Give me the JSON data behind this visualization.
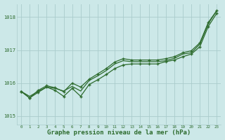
{
  "xlabel": "Graphe pression niveau de la mer (hPa)",
  "background_color": "#cce8e8",
  "grid_color": "#aacccc",
  "line_color": "#2d6b2d",
  "xlim": [
    -0.5,
    23.5
  ],
  "ylim": [
    1014.75,
    1018.4
  ],
  "yticks": [
    1015,
    1016,
    1017,
    1018
  ],
  "xticks": [
    0,
    1,
    2,
    3,
    4,
    5,
    6,
    7,
    8,
    9,
    10,
    11,
    12,
    13,
    14,
    15,
    16,
    17,
    18,
    19,
    20,
    21,
    22,
    23
  ],
  "series_smooth": [
    1015.75,
    1015.6,
    1015.75,
    1015.88,
    1015.84,
    1015.76,
    1015.9,
    1015.76,
    1016.08,
    1016.22,
    1016.38,
    1016.58,
    1016.68,
    1016.65,
    1016.65,
    1016.65,
    1016.65,
    1016.68,
    1016.75,
    1016.88,
    1016.92,
    1017.18,
    1017.8,
    1018.2
  ],
  "series_marker1": [
    1015.75,
    1015.55,
    1015.72,
    1015.88,
    1015.78,
    1015.6,
    1015.84,
    1015.6,
    1015.96,
    1016.1,
    1016.26,
    1016.44,
    1016.55,
    1016.58,
    1016.58,
    1016.58,
    1016.58,
    1016.65,
    1016.7,
    1016.8,
    1016.88,
    1017.1,
    1017.72,
    1018.12
  ],
  "series_marker2": [
    1015.75,
    1015.55,
    1015.78,
    1015.92,
    1015.86,
    1015.74,
    1016.0,
    1015.88,
    1016.12,
    1016.28,
    1016.44,
    1016.64,
    1016.74,
    1016.7,
    1016.7,
    1016.7,
    1016.7,
    1016.74,
    1016.8,
    1016.92,
    1016.98,
    1017.22,
    1017.84,
    1018.2
  ]
}
